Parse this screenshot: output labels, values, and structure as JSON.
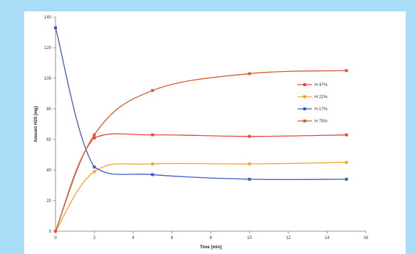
{
  "chart_data": {
    "type": "line",
    "title": "",
    "xlabel": "Time [min]",
    "ylabel": "Amount H2S [mg]",
    "xlim": [
      0,
      16
    ],
    "ylim": [
      0,
      140
    ],
    "xticks": [
      0,
      2,
      4,
      6,
      8,
      10,
      12,
      14,
      16
    ],
    "yticks": [
      0,
      20,
      40,
      60,
      80,
      100,
      120,
      140
    ],
    "grid": false,
    "legend_position": "top-right",
    "series": [
      {
        "name": "H 47%",
        "color": "#e8433a",
        "x": [
          0,
          2,
          5,
          10,
          15
        ],
        "y": [
          0,
          61,
          63,
          62,
          63
        ]
      },
      {
        "name": "H 22%",
        "color": "#f5a030",
        "x": [
          0,
          2,
          5,
          10,
          15
        ],
        "y": [
          0,
          39,
          44,
          44,
          45
        ]
      },
      {
        "name": "H 17%",
        "color": "#3d56c8",
        "x": [
          0,
          2,
          5,
          10,
          15
        ],
        "y": [
          133,
          42,
          37,
          34,
          34
        ]
      },
      {
        "name": "H 75%",
        "color": "#d85a28",
        "x": [
          0,
          2,
          5,
          10,
          15
        ],
        "y": [
          0,
          63,
          92,
          103,
          105
        ]
      }
    ]
  }
}
